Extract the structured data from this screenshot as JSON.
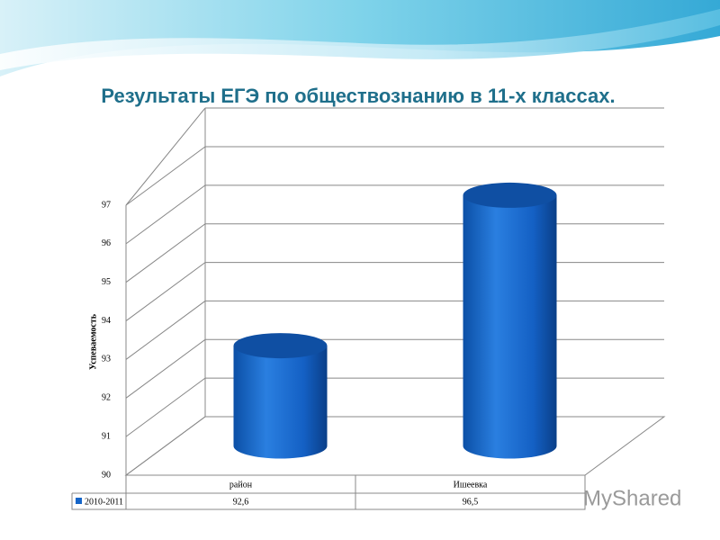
{
  "chart_data": {
    "type": "bar3d",
    "title": "Результаты  ЕГЭ по обществознанию в 11-х классах.",
    "y_label": "Успеваемость",
    "categories": [
      "район",
      "Ишеевка"
    ],
    "series": [
      {
        "name": "2010-2011",
        "color": "#1565c8",
        "values": [
          92.6,
          96.5
        ],
        "value_labels": [
          "92,6",
          "96,5"
        ]
      }
    ],
    "ylim": [
      90,
      97
    ],
    "yticks": [
      90,
      91,
      92,
      93,
      94,
      95,
      96,
      97
    ],
    "grid": true,
    "watermark": "MyShared"
  }
}
